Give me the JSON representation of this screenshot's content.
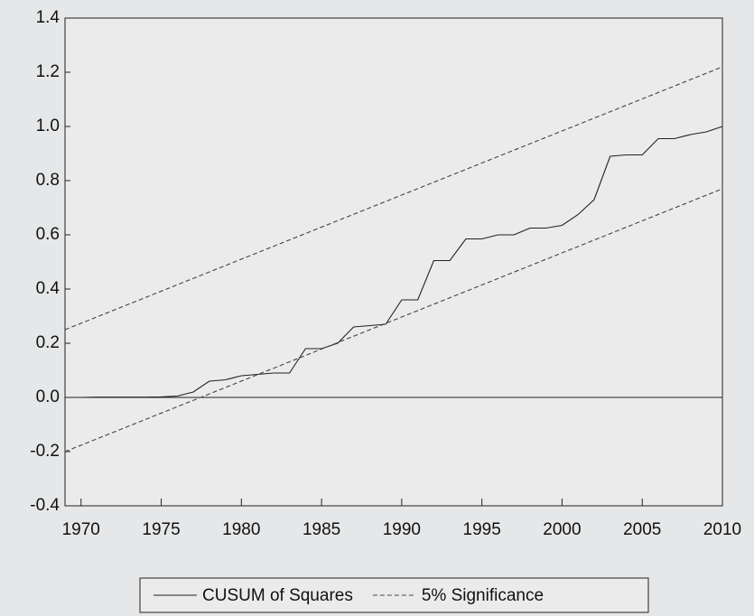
{
  "chart_data": {
    "type": "line",
    "xlim": [
      1969,
      2010
    ],
    "xticks": [
      1970,
      1975,
      1980,
      1985,
      1990,
      1995,
      2000,
      2005,
      2010
    ],
    "ylim": [
      -0.4,
      1.4
    ],
    "yticks": [
      -0.4,
      -0.2,
      {
        "value": 0,
        "label": "0.0"
      },
      0.2,
      0.4,
      0.6,
      0.8,
      {
        "value": 1,
        "label": "1.0"
      },
      1.2,
      1.4
    ],
    "zero_line": true,
    "series": [
      {
        "name": "CUSUM of Squares",
        "color": "#222222",
        "style": "solid",
        "x": [
          1969,
          1970,
          1971,
          1972,
          1973,
          1974,
          1975,
          1976,
          1977,
          1978,
          1979,
          1980,
          1981,
          1982,
          1983,
          1984,
          1985,
          1986,
          1987,
          1988,
          1989,
          1990,
          1991,
          1992,
          1993,
          1994,
          1995,
          1996,
          1997,
          1998,
          1999,
          2000,
          2001,
          2002,
          2003,
          2004,
          2005,
          2006,
          2007,
          2008,
          2009,
          2010
        ],
        "values": [
          0,
          0,
          0.001,
          0.001,
          0.001,
          0.001,
          0.002,
          0.005,
          0.02,
          0.06,
          0.065,
          0.08,
          0.085,
          0.09,
          0.09,
          0.18,
          0.18,
          0.2,
          0.26,
          0.265,
          0.27,
          0.36,
          0.36,
          0.505,
          0.505,
          0.585,
          0.585,
          0.6,
          0.6,
          0.625,
          0.625,
          0.635,
          0.675,
          0.73,
          0.89,
          0.895,
          0.895,
          0.955,
          0.955,
          0.97,
          0.98,
          1.0
        ]
      },
      {
        "name": "5% Significance",
        "color": "#444444",
        "style": "dashed",
        "x": [
          1969,
          2010
        ],
        "upper": [
          0.25,
          1.22
        ],
        "lower": [
          -0.2,
          0.77
        ]
      }
    ]
  }
}
